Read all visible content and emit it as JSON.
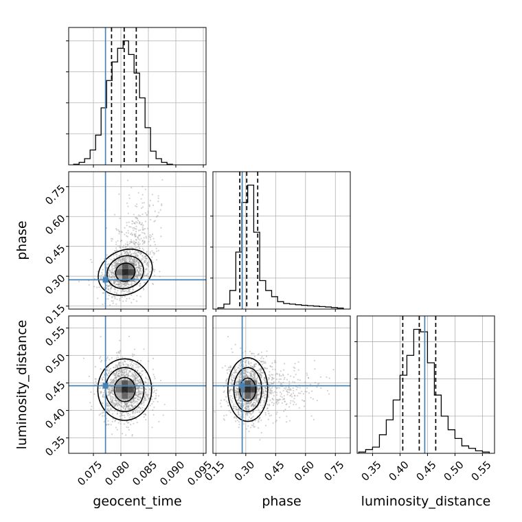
{
  "chart_data": {
    "type": "corner",
    "parameters": [
      "geocent_time",
      "phase",
      "luminosity_distance"
    ],
    "axis_labels": {
      "geocent_time": "geocent_time",
      "phase": "phase",
      "luminosity_distance": "luminosity_distance"
    },
    "ranges": {
      "geocent_time": [
        0.0705,
        0.0955
      ],
      "phase": [
        0.135,
        0.825
      ],
      "luminosity_distance": [
        0.322,
        0.572
      ]
    },
    "ticks": {
      "geocent_time": [
        {
          "v": 0.075,
          "t": "0.075"
        },
        {
          "v": 0.08,
          "t": "0.080"
        },
        {
          "v": 0.085,
          "t": "0.085"
        },
        {
          "v": 0.09,
          "t": "0.090"
        },
        {
          "v": 0.095,
          "t": "0.095"
        }
      ],
      "phase": [
        {
          "v": 0.15,
          "t": "0.15"
        },
        {
          "v": 0.3,
          "t": "0.30"
        },
        {
          "v": 0.45,
          "t": "0.45"
        },
        {
          "v": 0.6,
          "t": "0.60"
        },
        {
          "v": 0.75,
          "t": "0.75"
        }
      ],
      "luminosity_distance": [
        {
          "v": 0.35,
          "t": "0.35"
        },
        {
          "v": 0.4,
          "t": "0.40"
        },
        {
          "v": 0.45,
          "t": "0.45"
        },
        {
          "v": 0.5,
          "t": "0.50"
        },
        {
          "v": 0.55,
          "t": "0.55"
        }
      ]
    },
    "y_tick_labels": {
      "phase": [
        {
          "v": 0.15,
          "t": "0.15"
        },
        {
          "v": 0.3,
          "t": "0.30"
        },
        {
          "v": 0.45,
          "t": "0.45"
        },
        {
          "v": 0.6,
          "t": "0.60"
        },
        {
          "v": 0.75,
          "t": "0.75"
        }
      ],
      "luminosity_distance": [
        {
          "v": 0.35,
          "t": "0.35"
        },
        {
          "v": 0.4,
          "t": "0.40"
        },
        {
          "v": 0.45,
          "t": "0.45"
        },
        {
          "v": 0.5,
          "t": "0.50"
        },
        {
          "v": 0.55,
          "t": "0.55"
        }
      ]
    },
    "truths": {
      "geocent_time": 0.0772,
      "phase": 0.282,
      "luminosity_distance": 0.445
    },
    "quantiles": {
      "geocent_time": [
        0.0783,
        0.0806,
        0.0828
      ],
      "phase": [
        0.27,
        0.305,
        0.36
      ],
      "luminosity_distance": [
        0.405,
        0.435,
        0.465
      ]
    },
    "histograms": {
      "geocent_time": {
        "edges": [
          0.0714,
          0.0724,
          0.0734,
          0.0744,
          0.0754,
          0.0764,
          0.0774,
          0.0784,
          0.0794,
          0.0804,
          0.0814,
          0.0824,
          0.0834,
          0.0844,
          0.0854,
          0.0864,
          0.0874,
          0.0884,
          0.0894
        ],
        "counts": [
          0.005,
          0.02,
          0.05,
          0.12,
          0.24,
          0.46,
          0.68,
          0.83,
          0.94,
          1.0,
          0.89,
          0.74,
          0.54,
          0.3,
          0.11,
          0.05,
          0.02,
          0.005
        ],
        "y_ticks": [
          0.25,
          0.5,
          0.75,
          1.0
        ]
      },
      "phase": {
        "edges": [
          0.16,
          0.19,
          0.22,
          0.25,
          0.28,
          0.31,
          0.34,
          0.37,
          0.4,
          0.43,
          0.46,
          0.49,
          0.52,
          0.55,
          0.58,
          0.61,
          0.64,
          0.67,
          0.7,
          0.73,
          0.76,
          0.79
        ],
        "counts": [
          0.01,
          0.04,
          0.15,
          0.46,
          0.86,
          1.0,
          0.62,
          0.23,
          0.15,
          0.1,
          0.06,
          0.045,
          0.04,
          0.035,
          0.03,
          0.027,
          0.024,
          0.02,
          0.017,
          0.012,
          0.008
        ],
        "y_ticks": [
          0.25,
          0.5,
          0.75
        ]
      },
      "luminosity_distance": {
        "edges": [
          0.325,
          0.3375,
          0.35,
          0.3625,
          0.375,
          0.3875,
          0.4,
          0.4125,
          0.425,
          0.4375,
          0.45,
          0.4625,
          0.475,
          0.4875,
          0.5,
          0.5125,
          0.525,
          0.5375,
          0.55,
          0.5625
        ],
        "counts": [
          0.01,
          0.03,
          0.05,
          0.15,
          0.27,
          0.43,
          0.63,
          0.79,
          1.0,
          0.98,
          0.73,
          0.47,
          0.3,
          0.19,
          0.12,
          0.06,
          0.04,
          0.02,
          0.01
        ],
        "y_ticks": [
          0.3,
          0.6,
          0.9
        ]
      }
    },
    "joint": {
      "phase|geocent_time": {
        "mean": [
          0.0808,
          0.32
        ],
        "sigma": [
          0.0022,
          0.055
        ],
        "contour_levels": [
          {
            "a": [
              0.0051,
              0.11
            ],
            "b": [
              0.0028,
              0.045
            ],
            "angle": 0.15
          },
          {
            "a": [
              0.0034,
              0.08
            ],
            "b": [
              0.0019,
              0.032
            ],
            "angle": 0.2
          },
          {
            "a": [
              0.0018,
              0.045
            ],
            "b": [
              0.001,
              0.02
            ],
            "angle": 0.2
          }
        ]
      },
      "luminosity_distance|geocent_time": {
        "mean": [
          0.0807,
          0.438
        ],
        "sigma": [
          0.0022,
          0.027
        ],
        "contour_levels": [
          {
            "a": [
              0.0049,
              0.056
            ],
            "b": [
              0.0049,
              0.056
            ],
            "angle": 0.0
          },
          {
            "a": [
              0.0035,
              0.04
            ],
            "b": [
              0.0035,
              0.04
            ],
            "angle": 0.0
          },
          {
            "a": [
              0.0019,
              0.022
            ],
            "b": [
              0.0019,
              0.022
            ],
            "angle": 0.0
          }
        ]
      },
      "luminosity_distance|phase": {
        "mean": [
          0.31,
          0.438
        ],
        "sigma": [
          0.05,
          0.027
        ],
        "contour_levels": [
          {
            "a": [
              0.1,
              0.058
            ],
            "b": [
              0.1,
              0.058
            ],
            "angle": 0.0
          },
          {
            "a": [
              0.07,
              0.04
            ],
            "b": [
              0.07,
              0.04
            ],
            "angle": 0.0
          },
          {
            "a": [
              0.04,
              0.021
            ],
            "b": [
              0.04,
              0.021
            ],
            "angle": 0.0
          }
        ]
      }
    },
    "colors": {
      "truth": "#4682b4",
      "line": "#000000",
      "grid": "#b0b0b0",
      "points": "#9a9a9a"
    },
    "grid": true
  }
}
